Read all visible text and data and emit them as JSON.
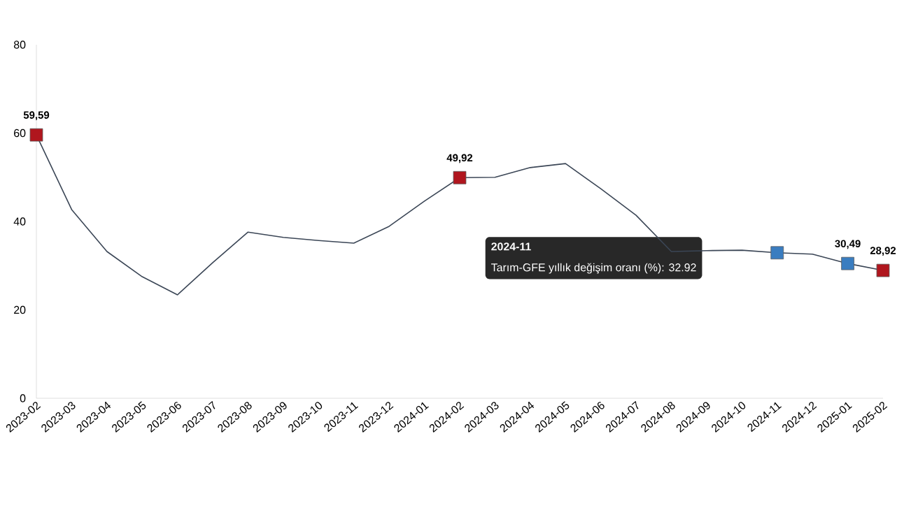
{
  "chart_data": {
    "type": "line",
    "categories": [
      "2023-02",
      "2023-03",
      "2023-04",
      "2023-05",
      "2023-06",
      "2023-07",
      "2023-08",
      "2023-09",
      "2023-10",
      "2023-11",
      "2023-12",
      "2024-01",
      "2024-02",
      "2024-03",
      "2024-04",
      "2024-05",
      "2024-06",
      "2024-07",
      "2024-08",
      "2024-09",
      "2024-10",
      "2024-11",
      "2024-12",
      "2025-01",
      "2025-02"
    ],
    "series": [
      {
        "color": "#3b4656",
        "values": [
          59.59,
          42.7,
          33.2,
          27.5,
          23.4,
          30.7,
          37.6,
          36.4,
          35.7,
          35.1,
          38.9,
          44.6,
          49.92,
          50.0,
          52.2,
          53.1,
          47.4,
          41.4,
          33.2,
          33.4,
          33.5,
          32.92,
          32.6,
          30.49,
          28.92
        ]
      },
      {
        "type": "scatter",
        "marker": "square",
        "values": [
          59.59,
          null,
          null,
          null,
          null,
          null,
          null,
          null,
          null,
          null,
          null,
          null,
          49.92,
          null,
          null,
          null,
          null,
          null,
          null,
          null,
          null,
          32.92,
          null,
          30.49,
          28.92
        ],
        "colors": [
          "#b0161e",
          null,
          null,
          null,
          null,
          null,
          null,
          null,
          null,
          null,
          null,
          null,
          "#b0161e",
          null,
          null,
          null,
          null,
          null,
          null,
          null,
          null,
          "#3a7dc0",
          null,
          "#3a7dc0",
          "#b0161e"
        ],
        "value_labels": [
          "59,59",
          null,
          null,
          null,
          null,
          null,
          null,
          null,
          null,
          null,
          null,
          null,
          "49,92",
          null,
          null,
          null,
          null,
          null,
          null,
          null,
          null,
          null,
          null,
          "30,49",
          "28,92"
        ]
      }
    ],
    "ylim": [
      0,
      80
    ],
    "yticks": [
      0,
      20,
      40,
      60,
      80
    ],
    "grid": false,
    "marker": "none",
    "line_style": "solid",
    "annotations": [
      "2024-11",
      "Tarım-GFE yıllık değişim oranı (%): 32.92"
    ]
  }
}
